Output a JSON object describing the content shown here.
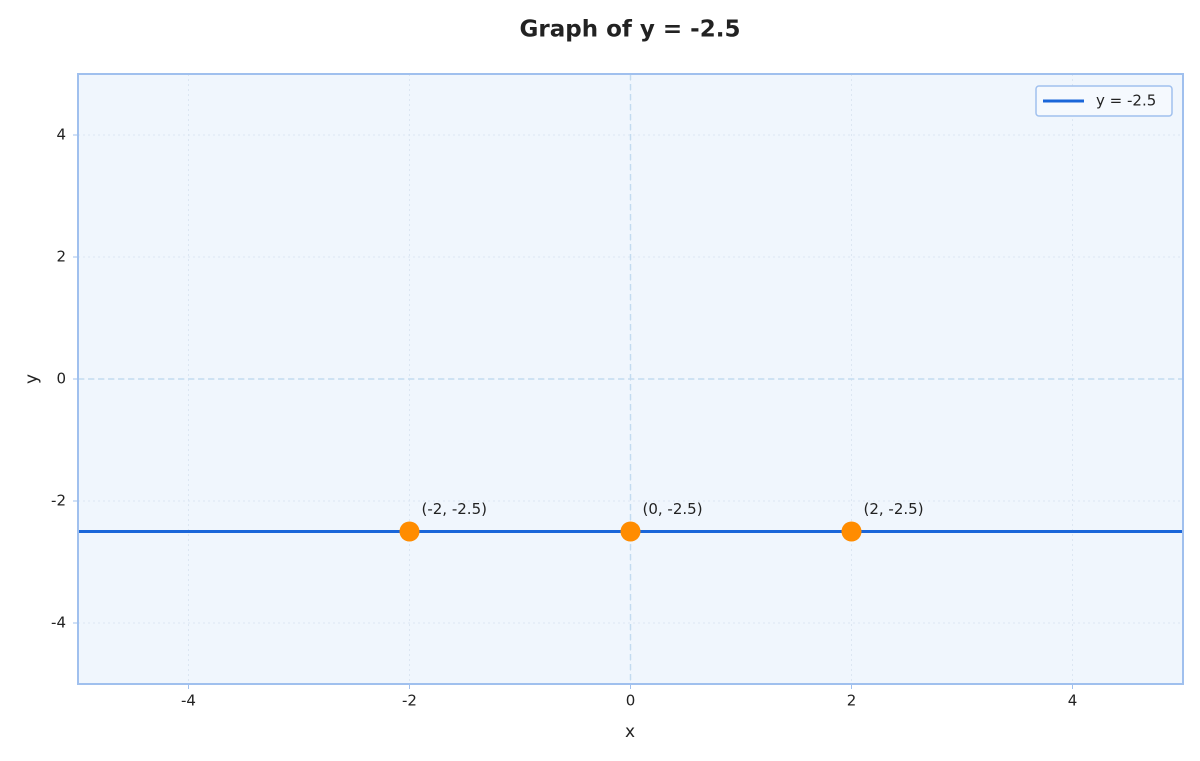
{
  "chart_data": {
    "type": "line",
    "title": "Graph of y = -2.5",
    "xlabel": "x",
    "ylabel": "y",
    "xlim": [
      -5,
      5
    ],
    "ylim": [
      -5,
      5
    ],
    "xticks": [
      -4,
      -2,
      0,
      2,
      4
    ],
    "yticks": [
      -4,
      -2,
      0,
      2,
      4
    ],
    "grid": true,
    "reference_lines": {
      "x": 0,
      "y": 0
    },
    "legend": "upper right",
    "series": [
      {
        "name": "y = -2.5",
        "color": "#1a66d9",
        "x": [
          -5,
          5
        ],
        "values": [
          -2.5,
          -2.5
        ]
      }
    ],
    "points": {
      "color": "#ff8c00",
      "x": [
        -2,
        0,
        2
      ],
      "values": [
        -2.5,
        -2.5,
        -2.5
      ],
      "labels": [
        "(-2, -2.5)",
        "(0, -2.5)",
        "(2, -2.5)"
      ]
    }
  }
}
